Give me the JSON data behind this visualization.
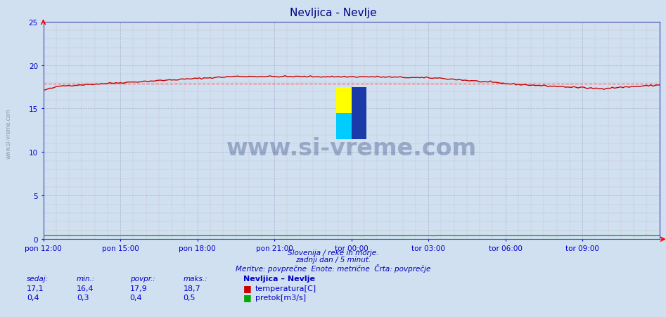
{
  "title": "Nevljica - Nevlje",
  "background_color": "#d0e0f0",
  "plot_bg_color": "#d0e0f0",
  "temp_color": "#cc0000",
  "flow_color": "#00aa00",
  "avg_line_color": "#ff6666",
  "x_tick_labels": [
    "pon 12:00",
    "pon 15:00",
    "pon 18:00",
    "pon 21:00",
    "tor 00:00",
    "tor 03:00",
    "tor 06:00",
    "tor 09:00"
  ],
  "x_tick_positions": [
    0,
    36,
    72,
    108,
    144,
    180,
    216,
    252
  ],
  "y_ticks": [
    0,
    5,
    10,
    15,
    20,
    25
  ],
  "y_lim": [
    0,
    25
  ],
  "x_lim": [
    0,
    288
  ],
  "avg_temp": 17.9,
  "avg_flow": 0.4,
  "temp_min": 16.4,
  "temp_max": 18.7,
  "temp_current": 17.1,
  "flow_min": 0.3,
  "flow_max": 0.5,
  "flow_current": 0.4,
  "footer_line1": "Slovenija / reke in morje.",
  "footer_line2": "zadnji dan / 5 minut.",
  "footer_line3": "Meritve: povprečne  Enote: metrične  Črta: povprečje",
  "footer_color": "#0000bb",
  "label_color": "#0000cc",
  "watermark": "www.si-vreme.com",
  "sidebar_text": "www.si-vreme.com",
  "title_color": "#000088",
  "spine_color": "#4444aa",
  "minor_grid_color": "#c8a0a0",
  "major_grid_color": "#9999bb"
}
